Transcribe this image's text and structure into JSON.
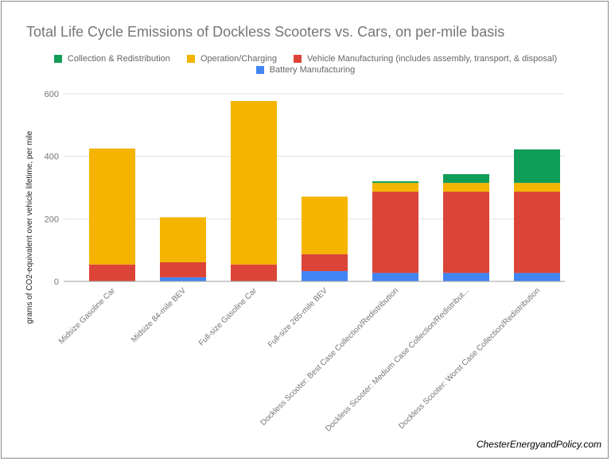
{
  "chart_data": {
    "type": "bar",
    "stacked": true,
    "title": "Total Life Cycle Emissions of Dockless Scooters vs. Cars, on per-mile basis",
    "ylabel": "grams of CO2-equivalent over vehicle lifetime, per mile",
    "xlabel": "",
    "ylim": [
      0,
      600
    ],
    "yticks": [
      "0",
      "200",
      "400",
      "600"
    ],
    "grid": true,
    "legend_position": "top",
    "categories": [
      "Midsize Gasoline Car",
      "Midsize 84-mile BEV",
      "Full-size Gasoline Car",
      "Full-size 265-mile BEV",
      "Dockless Scooter: Best Case Collection/Redistribution",
      "Dockless Scooter: Medium Case Collection/Redistribut...",
      "Dockless Scooter: Worst Case Collection/Redistribution"
    ],
    "series": [
      {
        "name": "Battery Manufacturing",
        "color": "#4285f4",
        "values": [
          0,
          13,
          0,
          33,
          27,
          27,
          27
        ]
      },
      {
        "name": "Vehicle Manufacturing (includes assembly, transport, & disposal)",
        "color": "#db4437",
        "values": [
          54,
          48,
          54,
          54,
          260,
          260,
          260
        ]
      },
      {
        "name": "Operation/Charging",
        "color": "#f4b400",
        "values": [
          371,
          144,
          523,
          184,
          28,
          28,
          28
        ]
      },
      {
        "name": "Collection & Redistribution",
        "color": "#0f9d58",
        "values": [
          0,
          0,
          0,
          0,
          5,
          28,
          107
        ]
      }
    ],
    "legend_order": [
      3,
      2,
      1,
      0
    ]
  },
  "watermark": "ChesterEnergyandPolicy.com"
}
